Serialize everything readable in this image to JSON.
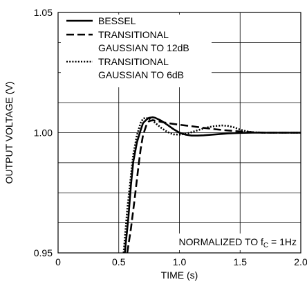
{
  "chart_data": {
    "type": "line",
    "xlabel": "TIME (s)",
    "ylabel": "OUTPUT VOLTAGE (V)",
    "xlim": [
      0,
      2.0
    ],
    "ylim": [
      0.95,
      1.05
    ],
    "xticks": [
      0,
      0.5,
      1.0,
      1.5,
      2.0
    ],
    "xtick_labels": [
      "0",
      "0.5",
      "1.0",
      "1.5",
      "2.0"
    ],
    "yticks": [
      0.95,
      1.0,
      1.05
    ],
    "ytick_labels": [
      "0.95",
      "1.00",
      "1.05"
    ],
    "grid": true,
    "legend_position": "top-left",
    "annotation": {
      "prefix": "NORMALIZED TO f",
      "subscript": "C",
      "suffix": " = 1Hz"
    },
    "series": [
      {
        "name": "BESSEL",
        "style": "solid",
        "x": [
          0.55,
          0.58,
          0.6,
          0.62,
          0.65,
          0.68,
          0.7,
          0.73,
          0.75,
          0.78,
          0.8,
          0.85,
          0.9,
          0.95,
          1.0,
          1.05,
          1.1,
          1.15,
          1.2,
          1.3,
          1.4,
          1.5,
          1.6,
          1.7,
          1.8,
          1.9,
          2.0
        ],
        "y": [
          0.95,
          0.965,
          0.978,
          0.988,
          0.996,
          1.001,
          1.004,
          1.0055,
          1.0062,
          1.0064,
          1.0062,
          1.005,
          1.0033,
          1.0015,
          1.0,
          0.9992,
          0.9988,
          0.9988,
          0.9989,
          0.9993,
          0.9997,
          0.9999,
          1.0,
          1.0,
          1.0,
          1.0,
          1.0
        ]
      },
      {
        "name": "TRANSITIONAL\nGAUSSIAN TO 12dB",
        "style": "dashed",
        "x": [
          0.57,
          0.6,
          0.63,
          0.66,
          0.68,
          0.7,
          0.73,
          0.75,
          0.78,
          0.8,
          0.85,
          0.9,
          1.0,
          1.1,
          1.2,
          1.3,
          1.4,
          1.5,
          1.6,
          1.7,
          1.8,
          1.9,
          2.0
        ],
        "y": [
          0.95,
          0.96,
          0.972,
          0.985,
          0.993,
          0.999,
          1.0035,
          1.0048,
          1.0052,
          1.005,
          1.0045,
          1.004,
          1.0033,
          1.0027,
          1.002,
          1.0014,
          1.0009,
          1.0005,
          1.0002,
          1.0,
          1.0,
          1.0,
          1.0
        ]
      },
      {
        "name": "TRANSITIONAL\nGAUSSIAN TO 6dB",
        "style": "dotted",
        "x": [
          0.54,
          0.57,
          0.6,
          0.62,
          0.65,
          0.68,
          0.7,
          0.72,
          0.75,
          0.78,
          0.8,
          0.85,
          0.9,
          0.95,
          1.0,
          1.05,
          1.1,
          1.15,
          1.2,
          1.25,
          1.3,
          1.35,
          1.4,
          1.45,
          1.5,
          1.55,
          1.6,
          1.7,
          1.8,
          1.9,
          2.0
        ],
        "y": [
          0.95,
          0.968,
          0.982,
          0.991,
          0.999,
          1.004,
          1.0058,
          1.0062,
          1.0058,
          1.005,
          1.0041,
          1.002,
          1.0003,
          0.9993,
          0.9992,
          0.9995,
          1.0002,
          1.001,
          1.0018,
          1.0024,
          1.0028,
          1.003,
          1.0028,
          1.0022,
          1.0013,
          1.0006,
          1.0002,
          1.0,
          1.0,
          1.0,
          1.0
        ]
      }
    ]
  }
}
